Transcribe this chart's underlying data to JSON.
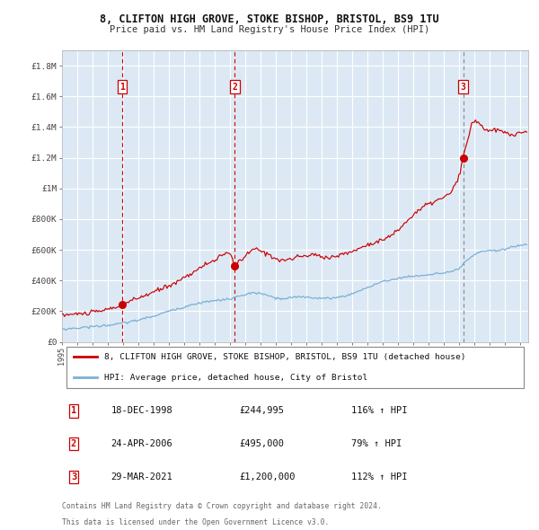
{
  "title_line1": "8, CLIFTON HIGH GROVE, STOKE BISHOP, BRISTOL, BS9 1TU",
  "title_line2": "Price paid vs. HM Land Registry's House Price Index (HPI)",
  "legend_line1": "8, CLIFTON HIGH GROVE, STOKE BISHOP, BRISTOL, BS9 1TU (detached house)",
  "legend_line2": "HPI: Average price, detached house, City of Bristol",
  "footer_line1": "Contains HM Land Registry data © Crown copyright and database right 2024.",
  "footer_line2": "This data is licensed under the Open Government Licence v3.0.",
  "sale1_date": "18-DEC-1998",
  "sale1_price": "£244,995",
  "sale1_hpi": "116% ↑ HPI",
  "sale2_date": "24-APR-2006",
  "sale2_price": "£495,000",
  "sale2_hpi": "79% ↑ HPI",
  "sale3_date": "29-MAR-2021",
  "sale3_price": "£1,200,000",
  "sale3_hpi": "112% ↑ HPI",
  "sale1_year": 1998.96,
  "sale1_value": 244995,
  "sale2_year": 2006.31,
  "sale2_value": 495000,
  "sale3_year": 2021.24,
  "sale3_value": 1200000,
  "ylim_max": 1900000,
  "ylim_min": 0,
  "xlim_min": 1995.0,
  "xlim_max": 2025.5,
  "background_color": "#dce9f5",
  "outer_bg_color": "#ffffff",
  "red_line_color": "#cc0000",
  "blue_line_color": "#7ab0d4",
  "dashed_red_color": "#cc0000",
  "dashed_gray_color": "#888888",
  "grid_color": "#ffffff",
  "sale_marker_color": "#cc0000",
  "yticks": [
    0,
    200000,
    400000,
    600000,
    800000,
    1000000,
    1200000,
    1400000,
    1600000,
    1800000
  ],
  "ylabels": [
    "£0",
    "£200K",
    "£400K",
    "£600K",
    "£800K",
    "£1M",
    "£1.2M",
    "£1.4M",
    "£1.6M",
    "£1.8M"
  ]
}
